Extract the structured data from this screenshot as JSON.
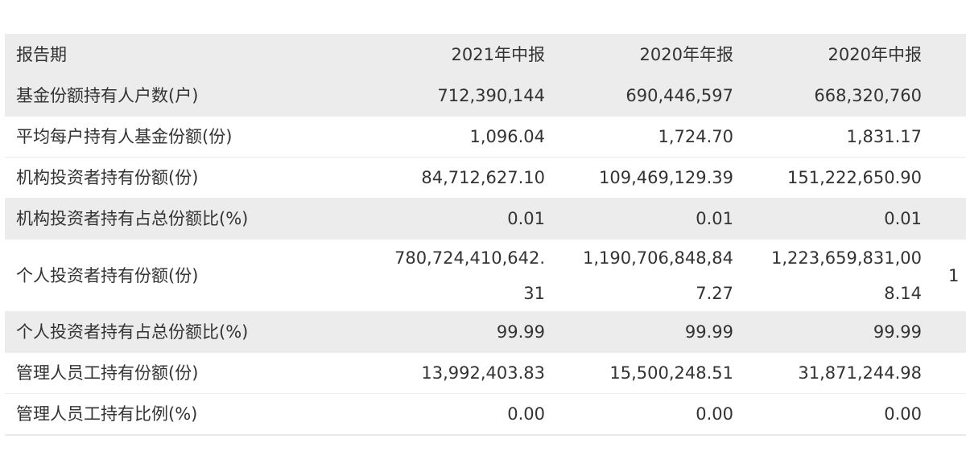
{
  "table": {
    "header": {
      "label": "报告期",
      "c1": "2021年中报",
      "c2": "2020年年报",
      "c3": "2020年中报"
    },
    "rows": [
      {
        "label": "基金份额持有人户数(户)",
        "c1": "712,390,144",
        "c2": "690,446,597",
        "c3": "668,320,760",
        "c4": ""
      },
      {
        "label": "平均每户持有人基金份额(份)",
        "c1": "1,096.04",
        "c2": "1,724.70",
        "c3": "1,831.17",
        "c4": ""
      },
      {
        "label": "机构投资者持有份额(份)",
        "c1": "84,712,627.10",
        "c2": "109,469,129.39",
        "c3": "151,222,650.90",
        "c4": ""
      },
      {
        "label": "机构投资者持有占总份额比(%)",
        "c1": "0.01",
        "c2": "0.01",
        "c3": "0.01",
        "c4": ""
      },
      {
        "label": "个人投资者持有份额(份)",
        "c1a": "780,724,410,642.",
        "c1b": "31",
        "c2a": "1,190,706,848,84",
        "c2b": "7.27",
        "c3a": "1,223,659,831,00",
        "c3b": "8.14",
        "c4": "1"
      },
      {
        "label": "个人投资者持有占总份额比(%)",
        "c1": "99.99",
        "c2": "99.99",
        "c3": "99.99",
        "c4": ""
      },
      {
        "label": "管理人员工持有份额(份)",
        "c1": "13,992,403.83",
        "c2": "15,500,248.51",
        "c3": "31,871,244.98",
        "c4": ""
      },
      {
        "label": "管理人员工持有比例(%)",
        "c1": "0.00",
        "c2": "0.00",
        "c3": "0.00",
        "c4": ""
      }
    ]
  }
}
